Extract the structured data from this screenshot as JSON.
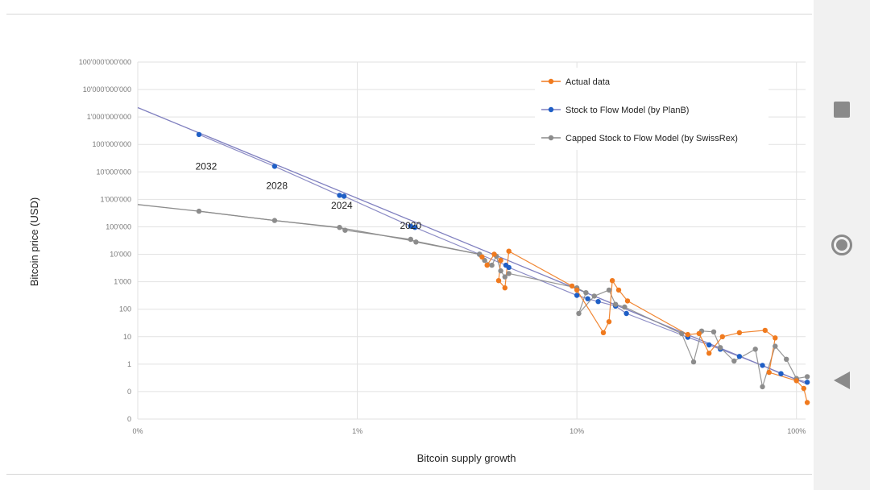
{
  "chart_data": {
    "type": "scatter",
    "title": "",
    "xlabel": "Bitcoin supply growth",
    "ylabel": "Bitcoin price  (USD)",
    "x_scale": "log",
    "y_scale": "log",
    "x_unit": "supply growth rate (fraction, 1 = 100%)",
    "y_unit": "USD",
    "xlim": [
      0.001,
      1.1
    ],
    "ylim": [
      0.01,
      100000000000.0
    ],
    "x_ticks": [
      {
        "value": 0.001,
        "label": "0%"
      },
      {
        "value": 0.01,
        "label": "1%"
      },
      {
        "value": 0.1,
        "label": "10%"
      },
      {
        "value": 1,
        "label": "100%"
      }
    ],
    "y_ticks": [
      {
        "value": 100000000000.0,
        "label": "100'000'000'000"
      },
      {
        "value": 10000000000.0,
        "label": "10'000'000'000"
      },
      {
        "value": 1000000000.0,
        "label": "1'000'000'000"
      },
      {
        "value": 100000000.0,
        "label": "100'000'000"
      },
      {
        "value": 10000000.0,
        "label": "10'000'000"
      },
      {
        "value": 1000000.0,
        "label": "1'000'000"
      },
      {
        "value": 100000.0,
        "label": "100'000"
      },
      {
        "value": 10000.0,
        "label": "10'000"
      },
      {
        "value": 1000.0,
        "label": "1'000"
      },
      {
        "value": 100,
        "label": "100"
      },
      {
        "value": 10,
        "label": "10"
      },
      {
        "value": 1,
        "label": "1"
      },
      {
        "value": 0.1,
        "label": "0"
      },
      {
        "value": 0.01,
        "label": "0"
      }
    ],
    "grid": true,
    "legend_position": "top-right",
    "annotations": [
      {
        "text": "2032",
        "x": 0.00205,
        "y": 12000000.0
      },
      {
        "text": "2028",
        "x": 0.0043,
        "y": 2400000.0
      },
      {
        "text": "2024",
        "x": 0.0085,
        "y": 460000.0
      },
      {
        "text": "2020",
        "x": 0.0175,
        "y": 85000.0
      }
    ],
    "series": [
      {
        "name": "Stock to Flow Model (by PlanB)",
        "color": "#1f5fc6",
        "line_color": "#7f7fbf",
        "trend_line": [
          [
            0.001,
            2200000000.0
          ],
          [
            1.1,
            0.2
          ]
        ],
        "points": [
          [
            0.0019,
            230000000.0
          ],
          [
            0.0042,
            16000000.0
          ],
          [
            0.0083,
            1400000.0
          ],
          [
            0.0087,
            1300000.0
          ],
          [
            0.0175,
            105000.0
          ],
          [
            0.0183,
            95000.0
          ],
          [
            0.036,
            10000.0
          ],
          [
            0.0475,
            4000.0
          ],
          [
            0.049,
            3300.0
          ],
          [
            0.1,
            320.0
          ],
          [
            0.112,
            240.0
          ],
          [
            0.125,
            190.0
          ],
          [
            0.15,
            130.0
          ],
          [
            0.168,
            70.0
          ],
          [
            0.32,
            9.5
          ],
          [
            0.4,
            5.0
          ],
          [
            0.45,
            3.5
          ],
          [
            0.55,
            1.9
          ],
          [
            0.7,
            0.9
          ],
          [
            0.85,
            0.45
          ],
          [
            1.0,
            0.28
          ],
          [
            1.12,
            0.22
          ]
        ]
      },
      {
        "name": "Capped Stock to Flow Model (by SwissRex)",
        "color": "#8c8c8c",
        "line_color": "#8c8c8c",
        "trend_line": [
          [
            0.001,
            650000.0
          ],
          [
            0.0019,
            370000.0
          ],
          [
            0.0042,
            170000.0
          ],
          [
            0.0085,
            90000.0
          ],
          [
            0.0183,
            30000.0
          ],
          [
            0.036,
            10000.0
          ]
        ],
        "points": [
          [
            0.0019,
            370000.0
          ],
          [
            0.0042,
            170000.0
          ],
          [
            0.0083,
            95000.0
          ],
          [
            0.0088,
            75000.0
          ],
          [
            0.0175,
            35000.0
          ],
          [
            0.0185,
            28000.0
          ],
          [
            0.036,
            10000.0
          ],
          [
            0.038,
            6000.0
          ],
          [
            0.041,
            4000.0
          ],
          [
            0.043,
            8500.0
          ],
          [
            0.045,
            2500.0
          ],
          [
            0.047,
            1500.0
          ],
          [
            0.049,
            2000.0
          ],
          [
            0.1,
            600.0
          ],
          [
            0.11,
            400.0
          ],
          [
            0.102,
            70.0
          ],
          [
            0.12,
            300.0
          ],
          [
            0.14,
            500.0
          ],
          [
            0.15,
            150.0
          ],
          [
            0.165,
            120.0
          ],
          [
            0.3,
            13.0
          ],
          [
            0.34,
            1.2
          ],
          [
            0.37,
            16.0
          ],
          [
            0.42,
            15.0
          ],
          [
            0.45,
            4.0
          ],
          [
            0.52,
            1.3
          ],
          [
            0.65,
            3.5
          ],
          [
            0.7,
            0.15
          ],
          [
            0.8,
            4.5
          ],
          [
            0.9,
            1.5
          ],
          [
            1.0,
            0.3
          ],
          [
            1.12,
            0.35
          ]
        ]
      },
      {
        "name": "Actual data",
        "color": "#f07a1e",
        "line_color": "#f07a1e",
        "points": [
          [
            0.037,
            8000.0
          ],
          [
            0.039,
            4000.0
          ],
          [
            0.042,
            10000.0
          ],
          [
            0.045,
            6000.0
          ],
          [
            0.044,
            1100.0
          ],
          [
            0.047,
            600.0
          ],
          [
            0.049,
            13000.0
          ],
          [
            0.095,
            700.0
          ],
          [
            0.1,
            500.0
          ],
          [
            0.132,
            14.0
          ],
          [
            0.14,
            35.0
          ],
          [
            0.145,
            1100.0
          ],
          [
            0.155,
            500.0
          ],
          [
            0.17,
            200.0
          ],
          [
            0.32,
            12.0
          ],
          [
            0.36,
            13.0
          ],
          [
            0.4,
            2.5
          ],
          [
            0.46,
            10.0
          ],
          [
            0.55,
            14.0
          ],
          [
            0.72,
            17.0
          ],
          [
            0.8,
            9.0
          ],
          [
            0.75,
            0.5
          ],
          [
            1.0,
            0.25
          ],
          [
            1.08,
            0.13
          ],
          [
            1.12,
            0.04
          ]
        ]
      }
    ]
  },
  "navbar": {
    "recent_icon": "square-recent-apps-icon",
    "home_icon": "circle-home-icon",
    "back_icon": "triangle-back-icon"
  }
}
